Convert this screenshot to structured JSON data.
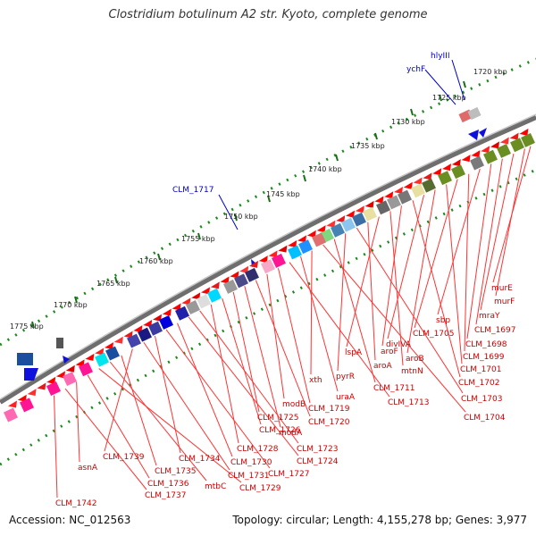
{
  "title": "Clostridium botulinum A2 str. Kyoto, complete genome",
  "footer": {
    "accession": "Accession: NC_012563",
    "summary": "Topology: circular; Length: 4,155,278 bp; Genes: 3,977"
  },
  "colors": {
    "backbone": "#7a7a7a",
    "dots": "#1a8a1a",
    "label_red": "#cc0000",
    "label_blue": "#0000cc",
    "ticks": "#1a6e1a"
  },
  "scale_labels": [
    {
      "label": "1720 kbp"
    },
    {
      "label": "1725 kbp"
    },
    {
      "label": "1730 kbp"
    },
    {
      "label": "1735 kbp"
    },
    {
      "label": "1740 kbp"
    },
    {
      "label": "1745 kbp"
    },
    {
      "label": "1750 kbp"
    },
    {
      "label": "1755 kbp"
    },
    {
      "label": "1760 kbp"
    },
    {
      "label": "1765 kbp"
    },
    {
      "label": "1770 kbp"
    },
    {
      "label": "1775 kbp"
    }
  ],
  "forward_genes": [
    "ychF",
    "hlyIII",
    "CLM_1717"
  ],
  "reverse_genes": [
    "murE",
    "murF",
    "mraY",
    "CLM_1697",
    "CLM_1698",
    "sbp",
    "CLM_1699",
    "CLM_1705",
    "CLM_1701",
    "aroB",
    "divIVA",
    "CLM_1702",
    "aroF",
    "mtnN",
    "lspA",
    "aroA",
    "CLM_1703",
    "pyrR",
    "CLM_1711",
    "CLM_1704",
    "xth",
    "uraA",
    "CLM_1713",
    "CLM_1719",
    "modB",
    "CLM_1720",
    "modA",
    "CLM_1725",
    "CLM_1726",
    "CLM_1728",
    "CLM_1723",
    "CLM_1724",
    "CLM_1730",
    "CLM_1727",
    "CLM_1734",
    "CLM_1731",
    "CLM_1739",
    "CLM_1735",
    "mtbC",
    "CLM_1729",
    "CLM_1736",
    "asnA",
    "CLM_1737",
    "CLM_1742"
  ]
}
